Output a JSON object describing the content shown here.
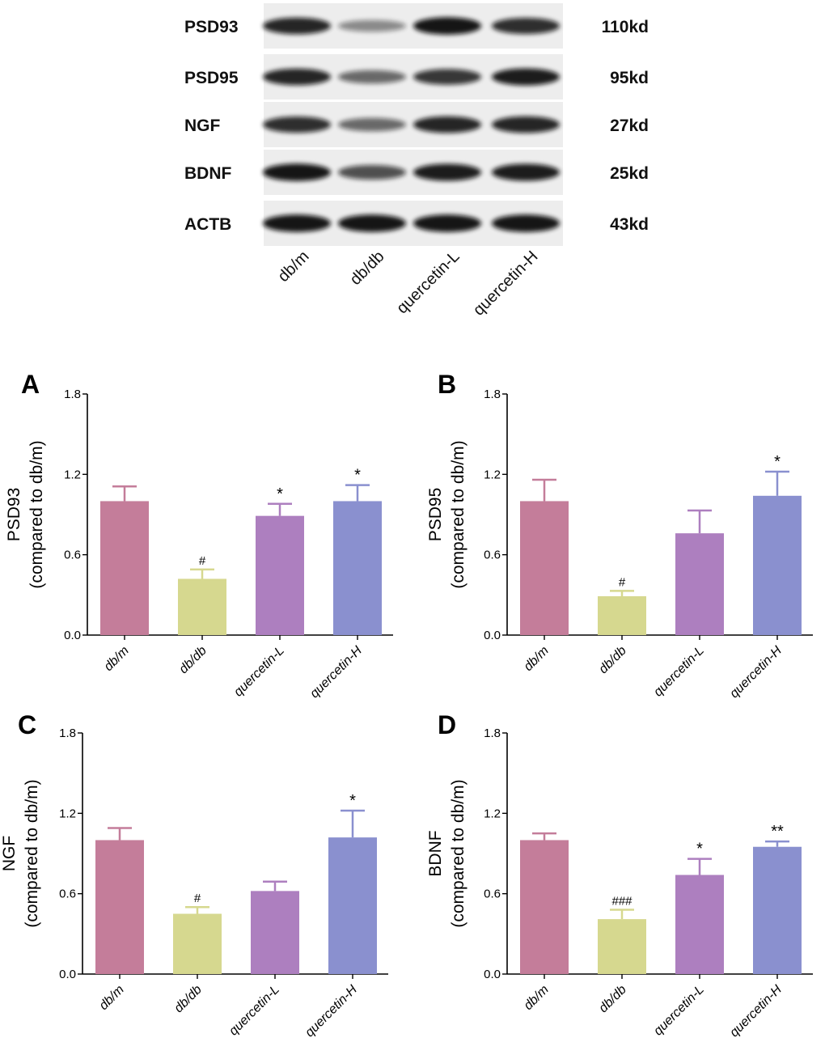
{
  "blot": {
    "proteins": [
      {
        "name": "PSD93",
        "size": "110kd",
        "bands": [
          0.85,
          0.25,
          0.95,
          0.8
        ]
      },
      {
        "name": "PSD95",
        "size": "95kd",
        "bands": [
          0.85,
          0.45,
          0.75,
          0.9
        ]
      },
      {
        "name": "NGF",
        "size": "27kd",
        "bands": [
          0.8,
          0.45,
          0.85,
          0.85
        ]
      },
      {
        "name": "BDNF",
        "size": "25kd",
        "bands": [
          0.95,
          0.6,
          0.9,
          0.9
        ]
      },
      {
        "name": "ACTB",
        "size": "43kd",
        "bands": [
          0.95,
          0.95,
          0.95,
          0.95
        ]
      }
    ],
    "lanes": [
      "db/m",
      "db/db",
      "quercetin-L",
      "quercetin-H"
    ]
  },
  "colors": [
    "#c47d9a",
    "#d6d88f",
    "#ad7fbf",
    "#8a90cf"
  ],
  "chart_data": [
    {
      "type": "bar",
      "panel": "A",
      "ylabel_top": "PSD93",
      "ylabel_bottom": "(compared to db/m)",
      "categories": [
        "db/m",
        "db/db",
        "quercetin-L",
        "quercetin-H"
      ],
      "values": [
        1.0,
        0.42,
        0.89,
        1.0
      ],
      "errors": [
        0.11,
        0.07,
        0.09,
        0.12
      ],
      "annotations": [
        "",
        "#",
        "*",
        "*"
      ],
      "ylim": [
        0,
        1.8
      ],
      "yticks": [
        "0.0",
        "0.6",
        "1.2",
        "1.8"
      ]
    },
    {
      "type": "bar",
      "panel": "B",
      "ylabel_top": "PSD95",
      "ylabel_bottom": "(compared to db/m)",
      "categories": [
        "db/m",
        "db/db",
        "quercetin-L",
        "quercetin-H"
      ],
      "values": [
        1.0,
        0.29,
        0.76,
        1.04
      ],
      "errors": [
        0.16,
        0.04,
        0.17,
        0.18
      ],
      "annotations": [
        "",
        "#",
        "",
        "*"
      ],
      "ylim": [
        0,
        1.8
      ],
      "yticks": [
        "0.0",
        "0.6",
        "1.2",
        "1.8"
      ]
    },
    {
      "type": "bar",
      "panel": "C",
      "ylabel_top": "NGF",
      "ylabel_bottom": "(compared to db/m)",
      "categories": [
        "db/m",
        "db/db",
        "quercetin-L",
        "quercetin-H"
      ],
      "values": [
        1.0,
        0.45,
        0.62,
        1.02
      ],
      "errors": [
        0.09,
        0.05,
        0.07,
        0.2
      ],
      "annotations": [
        "",
        "#",
        "",
        "*"
      ],
      "ylim": [
        0,
        1.8
      ],
      "yticks": [
        "0.0",
        "0.6",
        "1.2",
        "1.8"
      ]
    },
    {
      "type": "bar",
      "panel": "D",
      "ylabel_top": "BDNF",
      "ylabel_bottom": "(compared to db/m)",
      "categories": [
        "db/m",
        "db/db",
        "quercetin-L",
        "quercetin-H"
      ],
      "values": [
        1.0,
        0.41,
        0.74,
        0.95
      ],
      "errors": [
        0.05,
        0.07,
        0.12,
        0.04
      ],
      "annotations": [
        "",
        "###",
        "*",
        "**"
      ],
      "ylim": [
        0,
        1.8
      ],
      "yticks": [
        "0.0",
        "0.6",
        "1.2",
        "1.8"
      ]
    }
  ]
}
